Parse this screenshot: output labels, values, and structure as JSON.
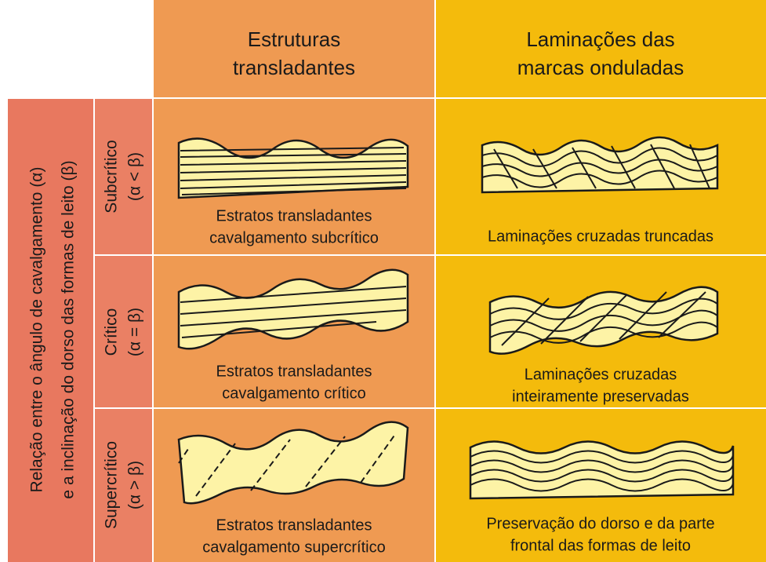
{
  "corner_label": {
    "lines": [
      "Relação entre o ângulo de cavalgamento (α)",
      "e a inclinação do dorso das formas de leito (β)"
    ]
  },
  "columns": [
    {
      "lines": [
        "Estruturas",
        "transladantes"
      ]
    },
    {
      "lines": [
        "Laminações das",
        "marcas onduladas"
      ]
    }
  ],
  "rows": [
    {
      "label": "Subcrítico",
      "condition": "(α < β)",
      "captions": [
        [
          "Estratos transladantes",
          "cavalgamento subcrítico"
        ],
        [
          "Laminações cruzadas truncadas"
        ]
      ]
    },
    {
      "label": "Crítico",
      "condition": "(α = β)",
      "captions": [
        [
          "Estratos transladantes",
          "cavalgamento crítico"
        ],
        [
          "Laminações cruzadas",
          "inteiramente preservadas"
        ]
      ]
    },
    {
      "label": "Supercrítico",
      "condition": "(α > β)",
      "captions": [
        [
          "Estratos transladantes",
          "cavalgamento supercrítico"
        ],
        [
          "Preservação do dorso e da parte",
          "frontal das formas de leito"
        ]
      ]
    }
  ]
}
